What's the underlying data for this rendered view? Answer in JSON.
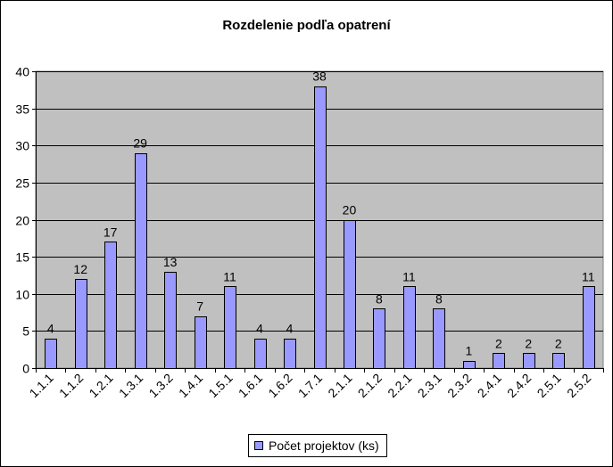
{
  "chart_data": {
    "type": "bar",
    "title": "Rozdelenie podľa opatrení",
    "xlabel": "",
    "ylabel": "",
    "ylim": [
      0,
      40
    ],
    "yticks": [
      0,
      5,
      10,
      15,
      20,
      25,
      30,
      35,
      40
    ],
    "grid": true,
    "legend_position": "bottom",
    "categories": [
      "1.1.1",
      "1.1.2",
      "1.2.1",
      "1.3.1",
      "1.3.2",
      "1.4.1",
      "1.5.1",
      "1.6.1",
      "1.6.2",
      "1.7.1",
      "2.1.1",
      "2.1.2",
      "2.2.1",
      "2.3.1",
      "2.3.2",
      "2.4.1",
      "2.4.2",
      "2.5.1",
      "2.5.2"
    ],
    "series": [
      {
        "name": "Počet projektov (ks)",
        "values": [
          4,
          12,
          17,
          29,
          13,
          7,
          11,
          4,
          4,
          38,
          20,
          8,
          11,
          8,
          1,
          2,
          2,
          2,
          11
        ]
      }
    ],
    "colors": {
      "bar": "#9999ff",
      "plot_background": "#c0c0c0",
      "gridline": "#000000"
    }
  }
}
